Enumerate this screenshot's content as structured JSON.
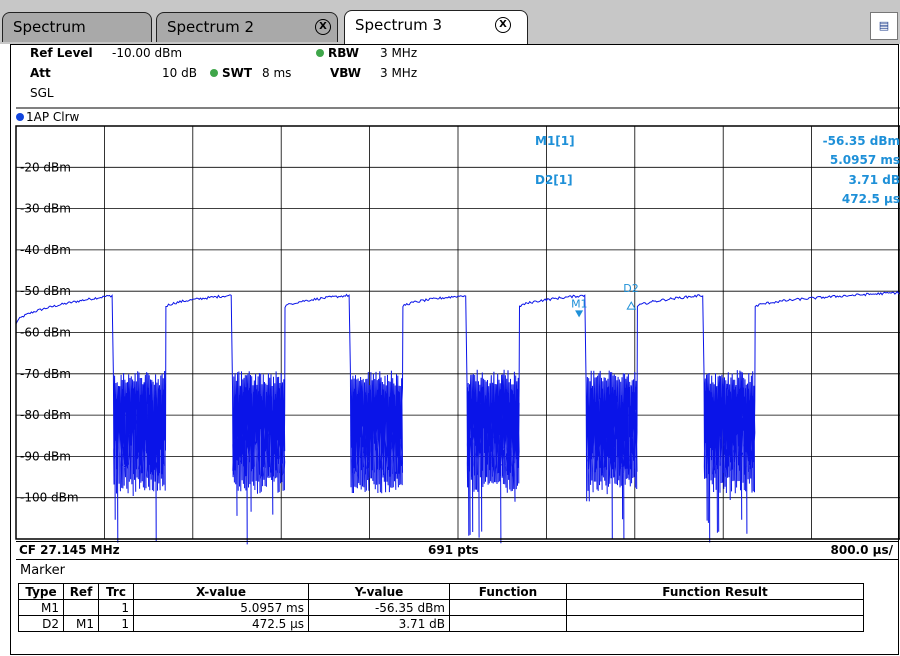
{
  "tabs": [
    {
      "label": "Spectrum",
      "closable": false,
      "active": false
    },
    {
      "label": "Spectrum 2",
      "closable": true,
      "active": false
    },
    {
      "label": "Spectrum 3",
      "closable": true,
      "active": true
    }
  ],
  "close_glyph": "X",
  "menu_icon": "table-icon",
  "settings": {
    "ref_level_label": "Ref Level",
    "ref_level_value": "-10.00 dBm",
    "att_label": "Att",
    "att_value": "10 dB",
    "swt_label": "SWT",
    "swt_value": "8 ms",
    "rbw_label": "RBW",
    "rbw_value": "3 MHz",
    "vbw_label": "VBW",
    "vbw_value": "3 MHz",
    "sweep_mode": "SGL"
  },
  "trace": {
    "label": "1AP Clrw",
    "color": "#0a14e8"
  },
  "marker_readout": {
    "m1_label": "M1[1]",
    "m1_level": "-56.35 dBm",
    "m1_time": "5.0957 ms",
    "d2_label": "D2[1]",
    "d2_level": "3.71 dB",
    "d2_time": "472.5 µs",
    "color": "#1e90d8"
  },
  "status": {
    "cf": "CF 27.145 MHz",
    "points": "691 pts",
    "scale": "800.0 µs/"
  },
  "chart_data": {
    "type": "line",
    "x_unit": "ms",
    "xlim": [
      0,
      8
    ],
    "ylim": [
      -110,
      -10
    ],
    "y_ticks": [
      {
        "value": -20,
        "label": "-20 dBm"
      },
      {
        "value": -30,
        "label": "-30 dBm"
      },
      {
        "value": -40,
        "label": "-40 dBm"
      },
      {
        "value": -50,
        "label": "-50 dBm"
      },
      {
        "value": -60,
        "label": "-60 dBm"
      },
      {
        "value": -70,
        "label": "-70 dBm"
      },
      {
        "value": -80,
        "label": "-80 dBm"
      },
      {
        "value": -90,
        "label": "-90 dBm"
      },
      {
        "value": -100,
        "label": "-100 dBm"
      }
    ],
    "grid": true,
    "series": [
      {
        "color": "#0a14e8",
        "high_segments": [
          {
            "start": 0.0,
            "end": 0.88,
            "level_start": -58,
            "level_end": -51
          },
          {
            "start": 1.35,
            "end": 1.95,
            "level_start": -54,
            "level_end": -51
          },
          {
            "start": 2.43,
            "end": 3.02,
            "level_start": -54,
            "level_end": -51
          },
          {
            "start": 3.49,
            "end": 4.08,
            "level_start": -54,
            "level_end": -51
          },
          {
            "start": 4.55,
            "end": 5.15,
            "level_start": -54,
            "level_end": -51
          },
          {
            "start": 5.62,
            "end": 6.22,
            "level_start": -54,
            "level_end": -51
          },
          {
            "start": 6.68,
            "end": 8.26,
            "level_start": -54,
            "level_end": -50
          }
        ],
        "noise_band": [
          -95,
          -73
        ],
        "noise_floor_min": -112
      }
    ],
    "markers": [
      {
        "name": "M1",
        "x": 5.0957,
        "y": -56.35
      },
      {
        "name": "D2",
        "x": 5.5682,
        "y": -52.64
      }
    ]
  },
  "marker_table": {
    "title": "Marker",
    "headers": [
      "Type",
      "Ref",
      "Trc",
      "X-value",
      "Y-value",
      "Function",
      "Function Result"
    ],
    "rows": [
      [
        "M1",
        "",
        "1",
        "5.0957 ms",
        "-56.35 dBm",
        "",
        ""
      ],
      [
        "D2",
        "M1",
        "1",
        "472.5 µs",
        "3.71 dB",
        "",
        ""
      ]
    ]
  }
}
